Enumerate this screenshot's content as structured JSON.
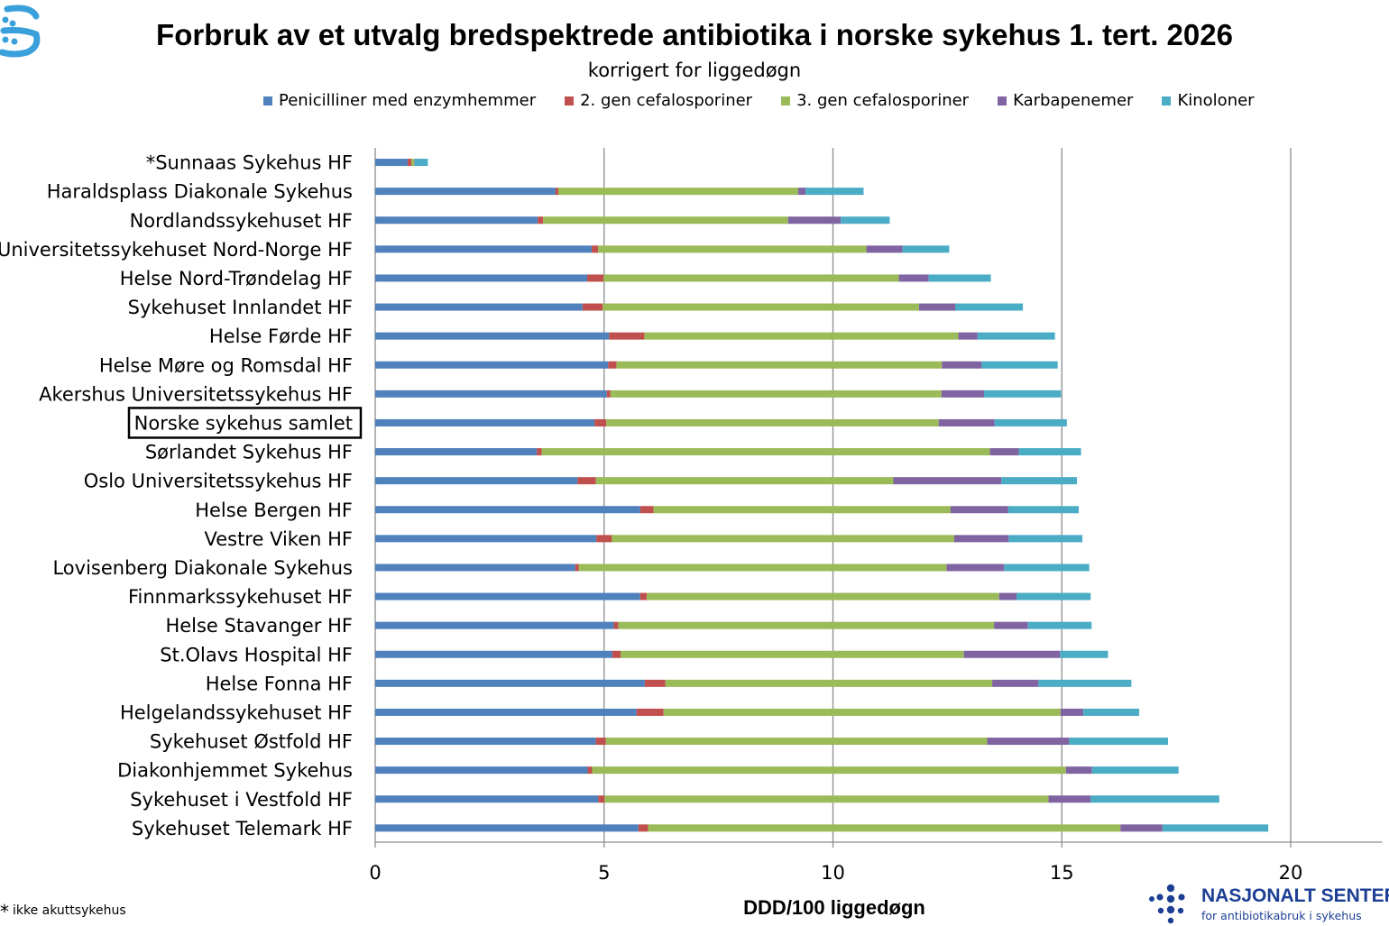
{
  "chart_data": {
    "type": "bar",
    "orientation": "horizontal",
    "stacked": true,
    "title": "Forbruk av et utvalg bredspektrede antibiotika i norske sykehus 1. tert. 2026",
    "subtitle": "korrigert for liggedøgn",
    "xlabel": "DDD/100 liggedøgn",
    "xlim": [
      0,
      22
    ],
    "xticks": [
      0,
      5,
      10,
      15,
      20
    ],
    "grid": "vertical",
    "legend_position": "top",
    "highlighted_category": "Norske sykehus samlet",
    "categories": [
      "*Sunnaas Sykehus HF",
      "Haraldsplass Diakonale Sykehus",
      "Nordlandssykehuset HF",
      "Universitetssykehuset Nord-Norge HF",
      "Helse Nord-Trøndelag HF",
      "Sykehuset Innlandet HF",
      "Helse Førde HF",
      "Helse Møre og Romsdal HF",
      "Akershus Universitetssykehus HF",
      "Norske sykehus samlet",
      "Sørlandet Sykehus HF",
      "Oslo Universitetssykehus HF",
      "Helse Bergen HF",
      "Vestre Viken HF",
      "Lovisenberg Diakonale Sykehus",
      "Finnmarkssykehuset HF",
      "Helse Stavanger HF",
      "St.Olavs Hospital HF",
      "Helse Fonna HF",
      "Helgelandssykehuset HF",
      "Sykehuset Østfold HF",
      "Diakonhjemmet Sykehus",
      "Sykehuset i Vestfold HF",
      "Sykehuset Telemark HF"
    ],
    "series": [
      {
        "name": "Penicilliner med enzymhemmer",
        "color": "#4f81bd",
        "values": [
          0.71,
          3.94,
          3.55,
          4.73,
          4.63,
          4.53,
          5.11,
          5.09,
          5.06,
          4.79,
          3.53,
          4.42,
          5.79,
          4.83,
          4.37,
          5.79,
          5.21,
          5.18,
          5.89,
          5.71,
          4.82,
          4.64,
          4.87,
          5.75
        ]
      },
      {
        "name": "2. gen cefalosporiner",
        "color": "#c0504d",
        "values": [
          0.08,
          0.06,
          0.12,
          0.14,
          0.36,
          0.44,
          0.77,
          0.18,
          0.08,
          0.26,
          0.11,
          0.4,
          0.29,
          0.34,
          0.08,
          0.14,
          0.1,
          0.18,
          0.45,
          0.59,
          0.22,
          0.1,
          0.14,
          0.21
        ]
      },
      {
        "name": "3. gen cefalosporiner",
        "color": "#9bbb59",
        "values": [
          0.06,
          5.24,
          5.35,
          5.86,
          6.45,
          6.91,
          6.86,
          7.11,
          7.23,
          7.26,
          9.79,
          6.5,
          6.49,
          7.48,
          8.03,
          7.7,
          8.21,
          7.5,
          7.14,
          8.67,
          8.33,
          10.35,
          9.7,
          10.32
        ]
      },
      {
        "name": "Karbapenemer",
        "color": "#8064a2",
        "values": [
          0.01,
          0.16,
          1.15,
          0.79,
          0.65,
          0.79,
          0.42,
          0.87,
          0.93,
          1.22,
          0.63,
          2.36,
          1.26,
          1.19,
          1.26,
          0.38,
          0.74,
          2.1,
          1.01,
          0.5,
          1.79,
          0.57,
          0.92,
          0.92
        ]
      },
      {
        "name": "Kinoloner",
        "color": "#4bacc6",
        "values": [
          0.29,
          1.27,
          1.07,
          1.02,
          1.36,
          1.48,
          1.69,
          1.66,
          1.68,
          1.58,
          1.36,
          1.65,
          1.54,
          1.61,
          1.86,
          1.62,
          1.39,
          1.05,
          2.03,
          1.22,
          2.16,
          1.89,
          2.81,
          2.31
        ]
      }
    ]
  },
  "footnote": {
    "star": "*",
    "text": "ikke akuttsykehus"
  },
  "brand": {
    "name": "NASJONALT SENTER",
    "subtitle": "for antibiotikabruk i sykehus"
  }
}
